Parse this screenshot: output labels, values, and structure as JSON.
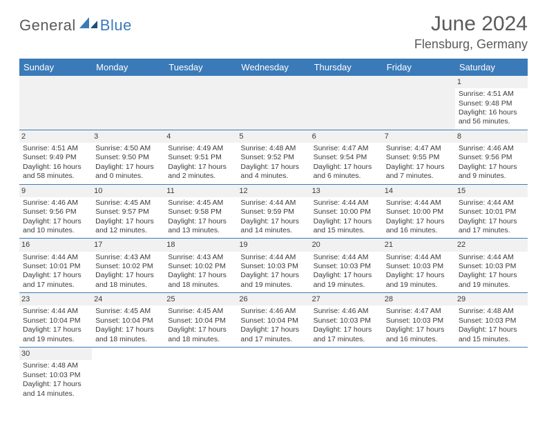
{
  "brand": {
    "part1": "General",
    "part2": "Blue"
  },
  "title": {
    "month": "June 2024",
    "location": "Flensburg, Germany"
  },
  "colors": {
    "accent": "#3a7ab8",
    "grey_bg": "#f1f1f1",
    "text": "#3a3a3a"
  },
  "day_headers": [
    "Sunday",
    "Monday",
    "Tuesday",
    "Wednesday",
    "Thursday",
    "Friday",
    "Saturday"
  ],
  "weeks": [
    [
      null,
      null,
      null,
      null,
      null,
      null,
      {
        "n": "1",
        "sr": "Sunrise: 4:51 AM",
        "ss": "Sunset: 9:48 PM",
        "d1": "Daylight: 16 hours",
        "d2": "and 56 minutes."
      }
    ],
    [
      {
        "n": "2",
        "sr": "Sunrise: 4:51 AM",
        "ss": "Sunset: 9:49 PM",
        "d1": "Daylight: 16 hours",
        "d2": "and 58 minutes."
      },
      {
        "n": "3",
        "sr": "Sunrise: 4:50 AM",
        "ss": "Sunset: 9:50 PM",
        "d1": "Daylight: 17 hours",
        "d2": "and 0 minutes."
      },
      {
        "n": "4",
        "sr": "Sunrise: 4:49 AM",
        "ss": "Sunset: 9:51 PM",
        "d1": "Daylight: 17 hours",
        "d2": "and 2 minutes."
      },
      {
        "n": "5",
        "sr": "Sunrise: 4:48 AM",
        "ss": "Sunset: 9:52 PM",
        "d1": "Daylight: 17 hours",
        "d2": "and 4 minutes."
      },
      {
        "n": "6",
        "sr": "Sunrise: 4:47 AM",
        "ss": "Sunset: 9:54 PM",
        "d1": "Daylight: 17 hours",
        "d2": "and 6 minutes."
      },
      {
        "n": "7",
        "sr": "Sunrise: 4:47 AM",
        "ss": "Sunset: 9:55 PM",
        "d1": "Daylight: 17 hours",
        "d2": "and 7 minutes."
      },
      {
        "n": "8",
        "sr": "Sunrise: 4:46 AM",
        "ss": "Sunset: 9:56 PM",
        "d1": "Daylight: 17 hours",
        "d2": "and 9 minutes."
      }
    ],
    [
      {
        "n": "9",
        "sr": "Sunrise: 4:46 AM",
        "ss": "Sunset: 9:56 PM",
        "d1": "Daylight: 17 hours",
        "d2": "and 10 minutes."
      },
      {
        "n": "10",
        "sr": "Sunrise: 4:45 AM",
        "ss": "Sunset: 9:57 PM",
        "d1": "Daylight: 17 hours",
        "d2": "and 12 minutes."
      },
      {
        "n": "11",
        "sr": "Sunrise: 4:45 AM",
        "ss": "Sunset: 9:58 PM",
        "d1": "Daylight: 17 hours",
        "d2": "and 13 minutes."
      },
      {
        "n": "12",
        "sr": "Sunrise: 4:44 AM",
        "ss": "Sunset: 9:59 PM",
        "d1": "Daylight: 17 hours",
        "d2": "and 14 minutes."
      },
      {
        "n": "13",
        "sr": "Sunrise: 4:44 AM",
        "ss": "Sunset: 10:00 PM",
        "d1": "Daylight: 17 hours",
        "d2": "and 15 minutes."
      },
      {
        "n": "14",
        "sr": "Sunrise: 4:44 AM",
        "ss": "Sunset: 10:00 PM",
        "d1": "Daylight: 17 hours",
        "d2": "and 16 minutes."
      },
      {
        "n": "15",
        "sr": "Sunrise: 4:44 AM",
        "ss": "Sunset: 10:01 PM",
        "d1": "Daylight: 17 hours",
        "d2": "and 17 minutes."
      }
    ],
    [
      {
        "n": "16",
        "sr": "Sunrise: 4:44 AM",
        "ss": "Sunset: 10:01 PM",
        "d1": "Daylight: 17 hours",
        "d2": "and 17 minutes."
      },
      {
        "n": "17",
        "sr": "Sunrise: 4:43 AM",
        "ss": "Sunset: 10:02 PM",
        "d1": "Daylight: 17 hours",
        "d2": "and 18 minutes."
      },
      {
        "n": "18",
        "sr": "Sunrise: 4:43 AM",
        "ss": "Sunset: 10:02 PM",
        "d1": "Daylight: 17 hours",
        "d2": "and 18 minutes."
      },
      {
        "n": "19",
        "sr": "Sunrise: 4:44 AM",
        "ss": "Sunset: 10:03 PM",
        "d1": "Daylight: 17 hours",
        "d2": "and 19 minutes."
      },
      {
        "n": "20",
        "sr": "Sunrise: 4:44 AM",
        "ss": "Sunset: 10:03 PM",
        "d1": "Daylight: 17 hours",
        "d2": "and 19 minutes."
      },
      {
        "n": "21",
        "sr": "Sunrise: 4:44 AM",
        "ss": "Sunset: 10:03 PM",
        "d1": "Daylight: 17 hours",
        "d2": "and 19 minutes."
      },
      {
        "n": "22",
        "sr": "Sunrise: 4:44 AM",
        "ss": "Sunset: 10:03 PM",
        "d1": "Daylight: 17 hours",
        "d2": "and 19 minutes."
      }
    ],
    [
      {
        "n": "23",
        "sr": "Sunrise: 4:44 AM",
        "ss": "Sunset: 10:04 PM",
        "d1": "Daylight: 17 hours",
        "d2": "and 19 minutes."
      },
      {
        "n": "24",
        "sr": "Sunrise: 4:45 AM",
        "ss": "Sunset: 10:04 PM",
        "d1": "Daylight: 17 hours",
        "d2": "and 18 minutes."
      },
      {
        "n": "25",
        "sr": "Sunrise: 4:45 AM",
        "ss": "Sunset: 10:04 PM",
        "d1": "Daylight: 17 hours",
        "d2": "and 18 minutes."
      },
      {
        "n": "26",
        "sr": "Sunrise: 4:46 AM",
        "ss": "Sunset: 10:04 PM",
        "d1": "Daylight: 17 hours",
        "d2": "and 17 minutes."
      },
      {
        "n": "27",
        "sr": "Sunrise: 4:46 AM",
        "ss": "Sunset: 10:03 PM",
        "d1": "Daylight: 17 hours",
        "d2": "and 17 minutes."
      },
      {
        "n": "28",
        "sr": "Sunrise: 4:47 AM",
        "ss": "Sunset: 10:03 PM",
        "d1": "Daylight: 17 hours",
        "d2": "and 16 minutes."
      },
      {
        "n": "29",
        "sr": "Sunrise: 4:48 AM",
        "ss": "Sunset: 10:03 PM",
        "d1": "Daylight: 17 hours",
        "d2": "and 15 minutes."
      }
    ],
    [
      {
        "n": "30",
        "sr": "Sunrise: 4:48 AM",
        "ss": "Sunset: 10:03 PM",
        "d1": "Daylight: 17 hours",
        "d2": "and 14 minutes."
      },
      null,
      null,
      null,
      null,
      null,
      null
    ]
  ]
}
